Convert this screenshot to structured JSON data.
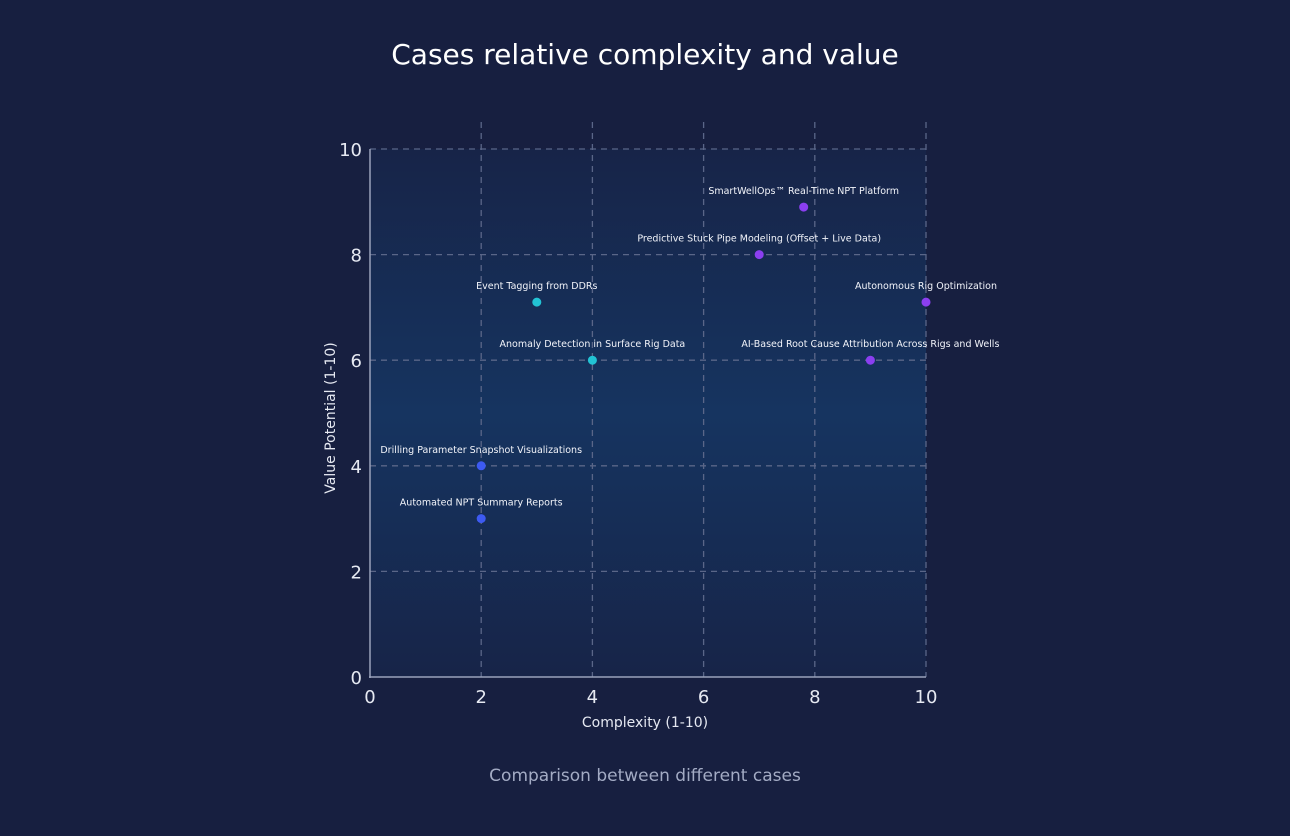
{
  "chart_data": {
    "type": "scatter",
    "title": "Cases relative complexity and value",
    "caption": "Comparison between different cases",
    "xlabel": "Complexity (1-10)",
    "ylabel": "Value Potential (1-10)",
    "xlim": [
      0,
      10
    ],
    "ylim": [
      0,
      10
    ],
    "xticks": [
      "0",
      "2",
      "4",
      "6",
      "8",
      "10"
    ],
    "yticks": [
      "0",
      "2",
      "4",
      "6",
      "8",
      "10"
    ],
    "grid": true,
    "points": [
      {
        "label": "SmartWellOps™ Real-Time NPT Platform",
        "x": 7.8,
        "y": 8.9,
        "color": "#8b3ff0"
      },
      {
        "label": "Predictive Stuck Pipe Modeling (Offset + Live Data)",
        "x": 7,
        "y": 8,
        "color": "#8b3ff0"
      },
      {
        "label": "Autonomous Rig Optimization",
        "x": 10,
        "y": 7.1,
        "color": "#8b3ff0"
      },
      {
        "label": "AI-Based Root Cause Attribution Across Rigs and Wells",
        "x": 9,
        "y": 6,
        "color": "#8b3ff0"
      },
      {
        "label": "Event Tagging from DDRs",
        "x": 3,
        "y": 7.1,
        "color": "#22c3d4"
      },
      {
        "label": "Anomaly Detection in Surface Rig Data",
        "x": 4,
        "y": 6,
        "color": "#22c3d4"
      },
      {
        "label": "Drilling Parameter Snapshot Visualizations",
        "x": 2,
        "y": 4,
        "color": "#3d5af1"
      },
      {
        "label": "Automated NPT Summary Reports",
        "x": 2,
        "y": 3,
        "color": "#3d5af1"
      }
    ]
  }
}
